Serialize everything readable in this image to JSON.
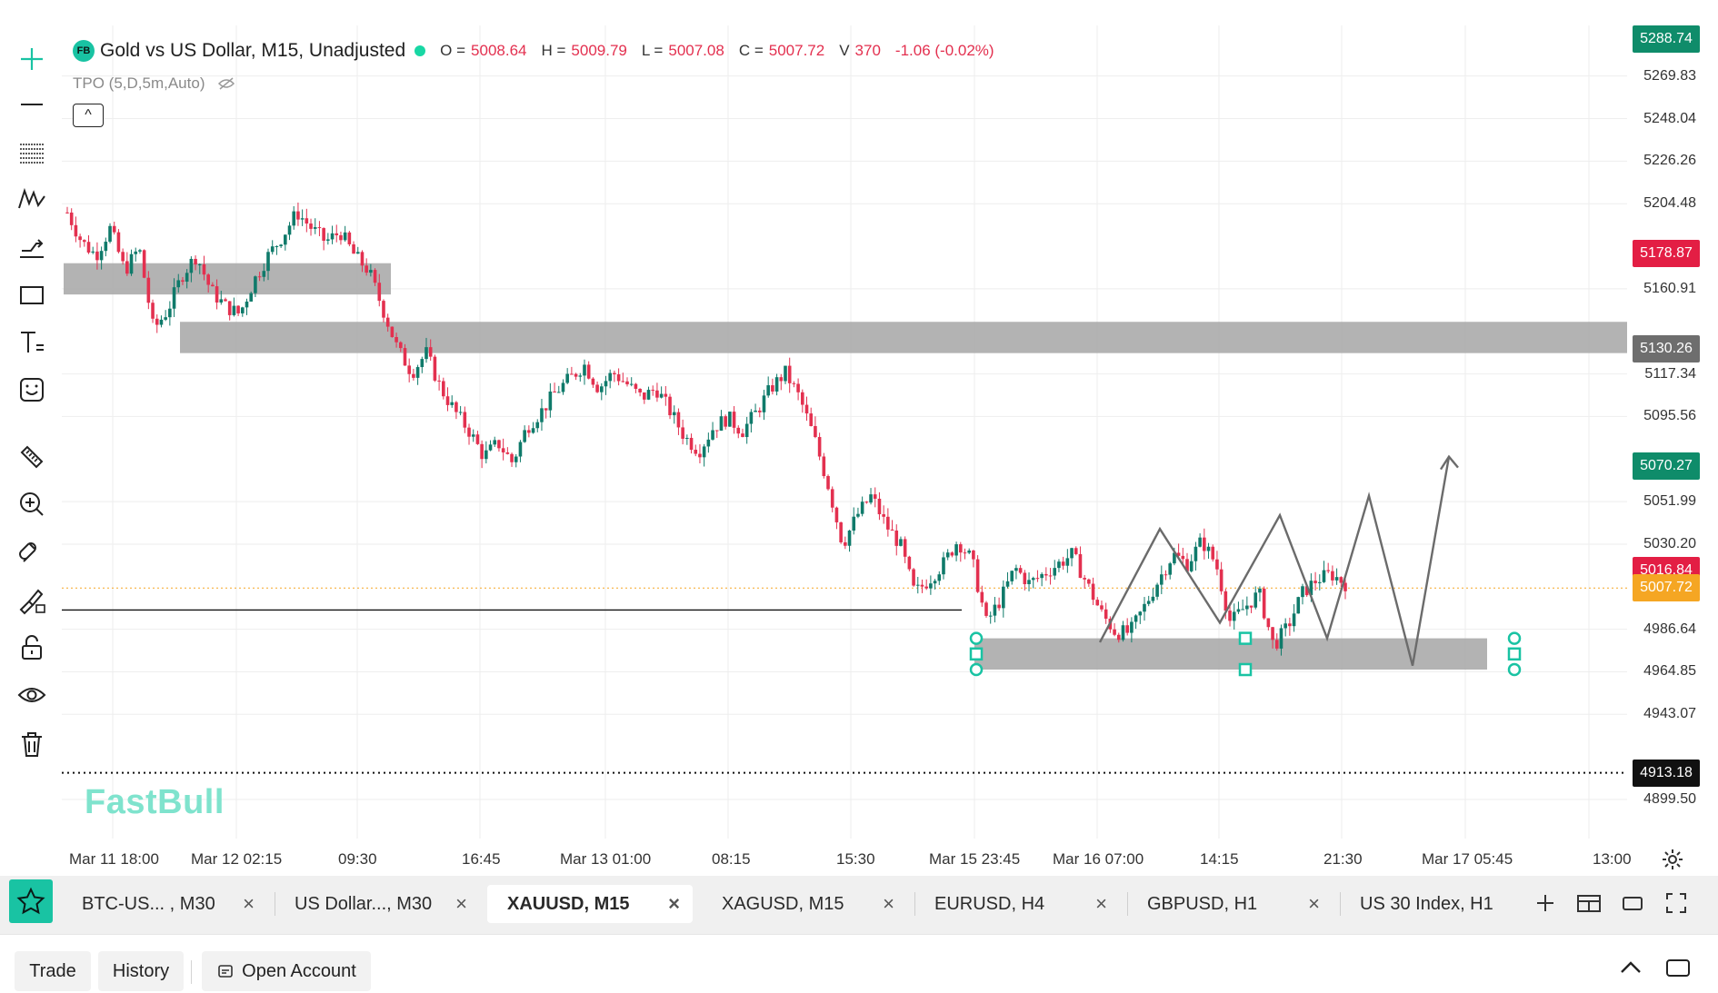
{
  "legend": {
    "badge": "FB",
    "symbol": "Gold vs US Dollar, M15, Unadjusted",
    "open_key": "O =",
    "open": "5008.64",
    "high_key": "H =",
    "high": "5009.79",
    "low_key": "L =",
    "low": "5007.08",
    "close_key": "C =",
    "close": "5007.72",
    "volume_key": "V",
    "volume": "370",
    "change": "-1.06 (-0.02%)",
    "indicator": "TPO (5,D,5m,Auto)",
    "collapse_glyph": "^"
  },
  "colors": {
    "up": "#0f7a6a",
    "down": "#e3304f",
    "accent": "#19c3a3",
    "zone": "#a6a6a6",
    "current_price": "#f5a623"
  },
  "price_axis": {
    "ticks": [
      "5269.83",
      "5248.04",
      "5226.26",
      "5204.48",
      "5160.91",
      "5117.34",
      "5095.56",
      "5051.99",
      "5030.20",
      "4986.64",
      "4964.85",
      "4943.07",
      "4899.50"
    ],
    "ticks_values": [
      5269.83,
      5248.04,
      5226.26,
      5204.48,
      5160.91,
      5117.34,
      5095.56,
      5051.99,
      5030.2,
      4986.64,
      4964.85,
      4943.07,
      4899.5
    ],
    "tags": [
      {
        "label": "5288.74",
        "value": 5288.74,
        "color": "#0f8c6a"
      },
      {
        "label": "5178.87",
        "value": 5178.87,
        "color": "#e31e44"
      },
      {
        "label": "5130.26",
        "value": 5130.26,
        "color": "#6e6e6e"
      },
      {
        "label": "5070.27",
        "value": 5070.27,
        "color": "#0f8c6a"
      },
      {
        "label": "5016.84",
        "value": 5016.84,
        "color": "#e31e44"
      },
      {
        "label": "5007.72",
        "value": 5007.72,
        "color": "#f5a623"
      },
      {
        "label": "4913.18",
        "value": 4913.18,
        "color": "#111111"
      }
    ]
  },
  "time_axis": {
    "labels": [
      "Mar 11 18:00",
      "Mar 12 02:15",
      "09:30",
      "16:45",
      "Mar 13 01:00",
      "08:15",
      "15:30",
      "Mar 15 23:45",
      "Mar 16 07:00",
      "14:15",
      "21:30",
      "Mar 17 05:45",
      "13:00"
    ]
  },
  "watermark": "FastBull",
  "chart_data": {
    "type": "candlestick",
    "symbol": "Gold vs US Dollar, M15",
    "ylim": [
      4890,
      5290
    ],
    "current_price": 5007.72,
    "close_path": [
      5200,
      5185,
      5178,
      5192,
      5170,
      5182,
      5140,
      5150,
      5168,
      5178,
      5160,
      5152,
      5148,
      5165,
      5178,
      5188,
      5200,
      5192,
      5185,
      5190,
      5178,
      5170,
      5150,
      5130,
      5118,
      5128,
      5110,
      5098,
      5088,
      5075,
      5082,
      5072,
      5090,
      5098,
      5108,
      5115,
      5122,
      5110,
      5118,
      5112,
      5105,
      5110,
      5098,
      5085,
      5078,
      5090,
      5095,
      5088,
      5098,
      5110,
      5118,
      5105,
      5085,
      5060,
      5030,
      5045,
      5055,
      5040,
      5030,
      5005,
      5012,
      5020,
      5032,
      5022,
      4990,
      5002,
      5018,
      5010,
      5015,
      5020,
      5025,
      5010,
      4995,
      4985,
      4985,
      4998,
      5012,
      5025,
      5020,
      5032,
      5020,
      4990,
      4998,
      5005,
      4978,
      4988,
      5005,
      5012,
      5015,
      5010
    ],
    "horizontal_line": 4996.5,
    "dotted_line": 4913.18,
    "zones": [
      {
        "from": 5158,
        "to": 5174,
        "span": "Mar 11 – Mar 12 09:30"
      },
      {
        "from": 5128,
        "to": 5144,
        "span": "Mar 12 02:15 – right edge"
      },
      {
        "from": 4966,
        "to": 4982,
        "span": "Mar 15 23:45 – Mar 17 05:45",
        "selected": true
      }
    ],
    "projection_path": [
      4980,
      5038,
      4990,
      5045,
      4982,
      5055,
      4968,
      5075
    ]
  },
  "tabs": [
    {
      "label": "BTC-US...  , M30",
      "close": "×"
    },
    {
      "label": "US Dollar..., M30",
      "close": "×"
    },
    {
      "label": "XAUUSD, M15",
      "close": "×",
      "active": true
    },
    {
      "label": "XAGUSD, M15",
      "close": "×"
    },
    {
      "label": "EURUSD, H4",
      "close": "×"
    },
    {
      "label": "GBPUSD, H1",
      "close": "×"
    },
    {
      "label": "US 30 Index, H1",
      "close": ""
    }
  ],
  "bottom_bar": {
    "trade": "Trade",
    "history": "History",
    "open_account": "Open Account"
  }
}
